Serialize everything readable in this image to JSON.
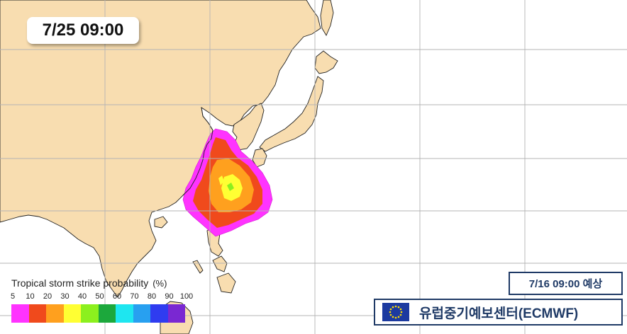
{
  "map": {
    "timestamp": "7/25 09:00",
    "legend": {
      "title": "Tropical storm strike probability",
      "unit": "(%)",
      "ticks": [
        "5",
        "10",
        "20",
        "30",
        "40",
        "50",
        "60",
        "70",
        "80",
        "90",
        "100"
      ],
      "colors": [
        "#ff33ff",
        "#f04a1c",
        "#ffa01e",
        "#ffff33",
        "#8cf01e",
        "#1ca83c",
        "#1ee6f0",
        "#28a0f0",
        "#2f3cf0",
        "#7a28d2"
      ]
    },
    "forecast_label": "7/16 09:00  예상",
    "center_label": "유럽중기예보센터(ECMWF)",
    "colors": {
      "land": "#f8ddb0",
      "sea": "#ffffff",
      "coast": "#222222",
      "grid": "#b4b4b4",
      "box_border": "#1f3a66",
      "eu_blue": "#1c3aa0",
      "eu_star": "#ffdd00"
    }
  }
}
